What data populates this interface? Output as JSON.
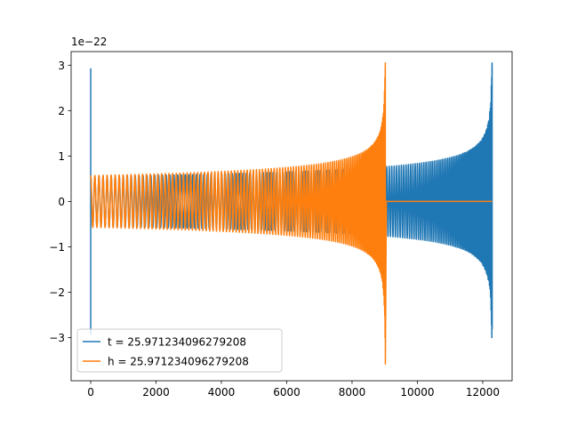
{
  "chart_data": {
    "type": "line",
    "title": "",
    "xlabel": "",
    "ylabel": "",
    "y_offset_label": "1e−22",
    "xlim": [
      -600,
      12900
    ],
    "ylim": [
      -3.95,
      3.3
    ],
    "x_ticks": [
      0,
      2000,
      4000,
      6000,
      8000,
      10000,
      12000
    ],
    "x_tick_labels": [
      "0",
      "2000",
      "4000",
      "6000",
      "8000",
      "10000",
      "12000"
    ],
    "y_ticks": [
      -3,
      -2,
      -1,
      0,
      1,
      2,
      3
    ],
    "y_tick_labels": [
      "−3",
      "−2",
      "−1",
      "0",
      "1",
      "2",
      "3"
    ],
    "grid": false,
    "legend_position": "lower-left",
    "series": [
      {
        "name": "t = 25.971234096279208",
        "color": "#1f77b4",
        "description_values": {
          "x_start": 0,
          "x_merger": 12290,
          "initial_spike": [
            2.92,
            -2.92
          ],
          "envelope_start": 0.55,
          "peak_max": 3.05,
          "peak_min": -2.82
        }
      },
      {
        "name": "h = 25.971234096279208",
        "color": "#ff7f0e",
        "description_values": {
          "x_start": 0,
          "x_merger": 9020,
          "x_end": 12290,
          "envelope_start": 0.57,
          "peak_max": 3.05,
          "peak_min": -3.58
        }
      }
    ]
  }
}
